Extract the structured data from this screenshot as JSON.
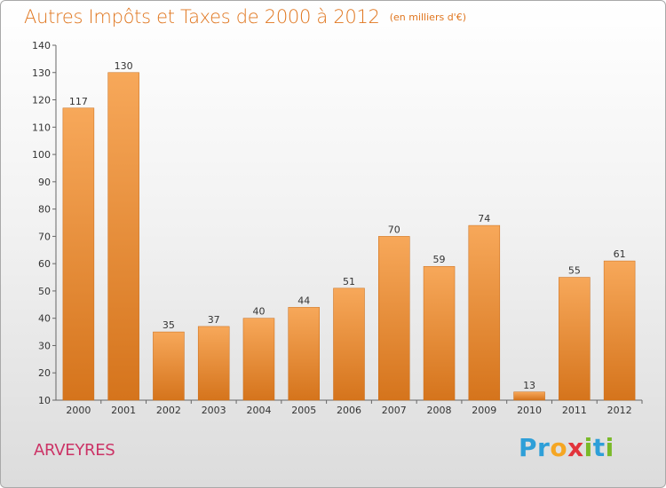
{
  "header": {
    "title": "Autres Impôts et Taxes de 2000 à 2012",
    "subtitle": "(en milliers d'€)"
  },
  "location": "ARVEYRES",
  "logo": {
    "text": "Proxiti",
    "letters": [
      {
        "ch": "P",
        "color": "#2e9fd8"
      },
      {
        "ch": "r",
        "color": "#2e9fd8"
      },
      {
        "ch": "o",
        "color": "#f5a623"
      },
      {
        "ch": "x",
        "color": "#e2343c"
      },
      {
        "ch": "i",
        "color": "#7ab929"
      },
      {
        "ch": "t",
        "color": "#2e9fd8"
      },
      {
        "ch": "i",
        "color": "#7ab929"
      }
    ]
  },
  "colors": {
    "bar_top": "#f7a85a",
    "bar_bottom": "#d5741c",
    "title": "#e0761f",
    "location": "#cc3366"
  },
  "chart_data": {
    "type": "bar",
    "title": "Autres Impôts et Taxes de 2000 à 2012",
    "subtitle": "(en milliers d'€)",
    "categories": [
      "2000",
      "2001",
      "2002",
      "2003",
      "2004",
      "2005",
      "2006",
      "2007",
      "2008",
      "2009",
      "2010",
      "2011",
      "2012"
    ],
    "values": [
      117,
      130,
      35,
      37,
      40,
      44,
      51,
      70,
      59,
      74,
      13,
      55,
      61
    ],
    "ylim": [
      10,
      140
    ],
    "yticks": [
      10,
      20,
      30,
      40,
      50,
      60,
      70,
      80,
      90,
      100,
      110,
      120,
      130,
      140
    ],
    "xlabel": "",
    "ylabel": "",
    "grid": false,
    "legend": "none"
  }
}
